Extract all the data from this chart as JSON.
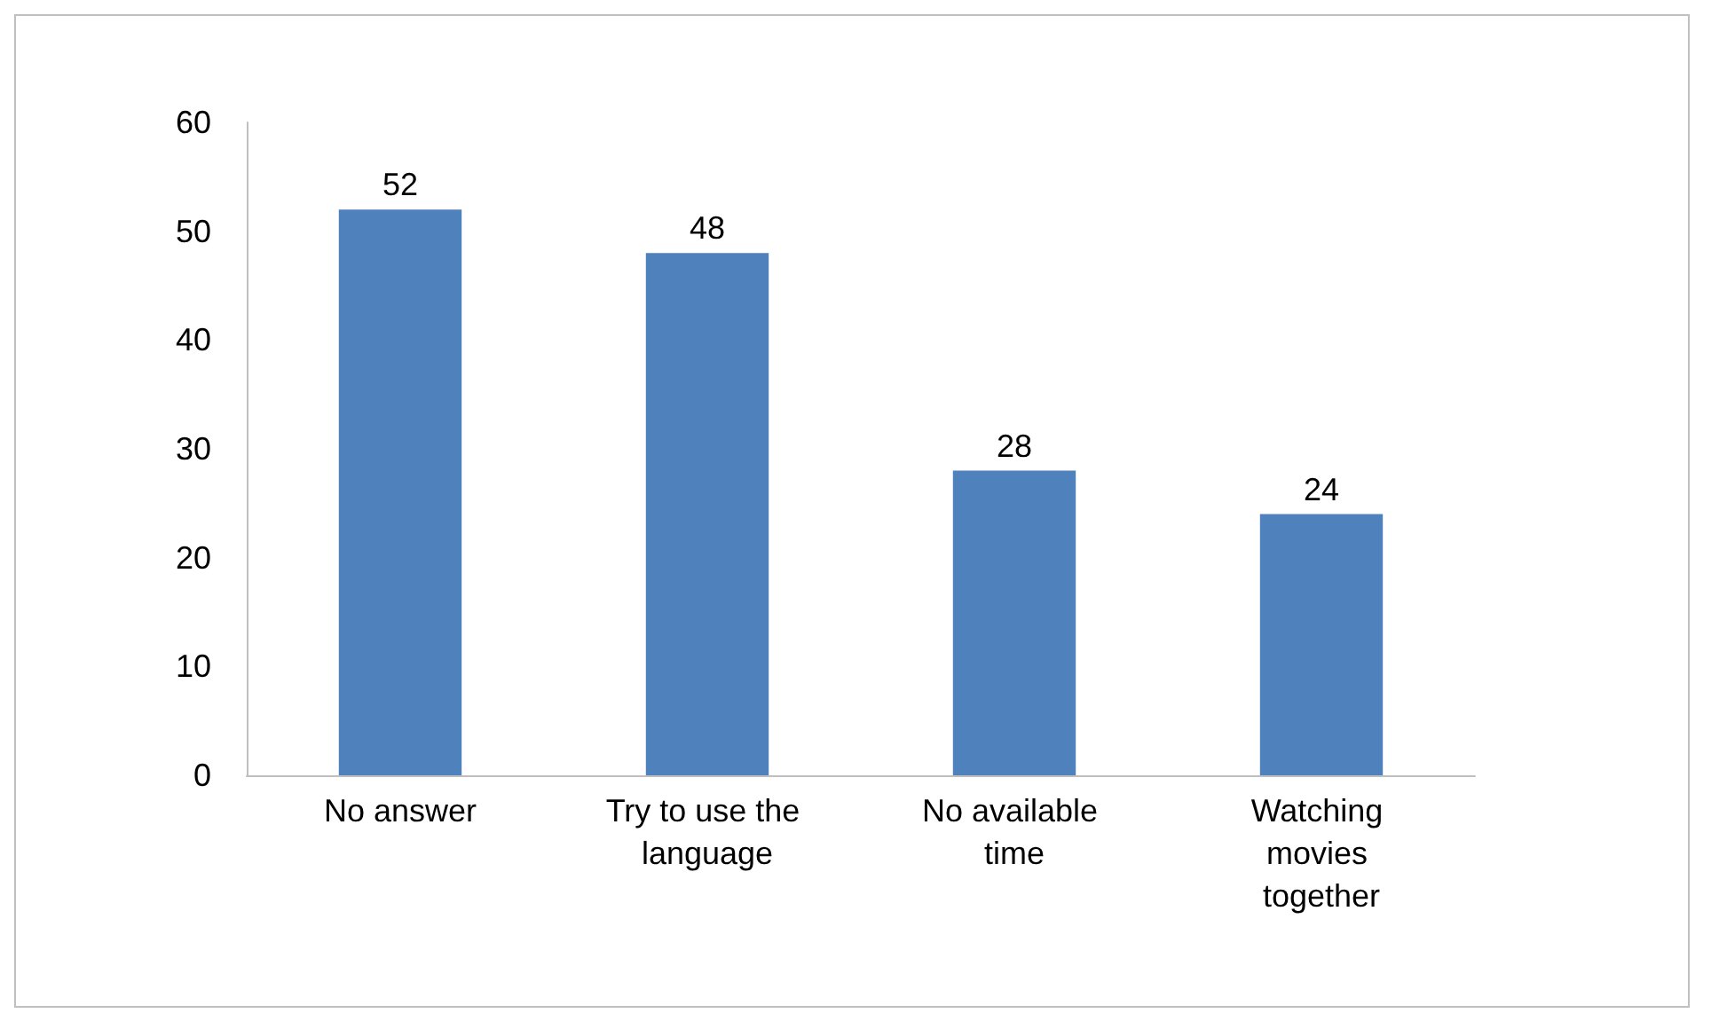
{
  "chart_data": {
    "type": "bar",
    "categories": [
      "No answer",
      "Try to use the language",
      "No available time",
      "Watching movies together"
    ],
    "values": [
      52,
      48,
      28,
      24
    ],
    "color": "#4f81bd",
    "ylim": [
      0,
      60
    ],
    "yticks": [
      0,
      10,
      20,
      30,
      40,
      50,
      60
    ],
    "grid": false,
    "data_labels": true
  }
}
